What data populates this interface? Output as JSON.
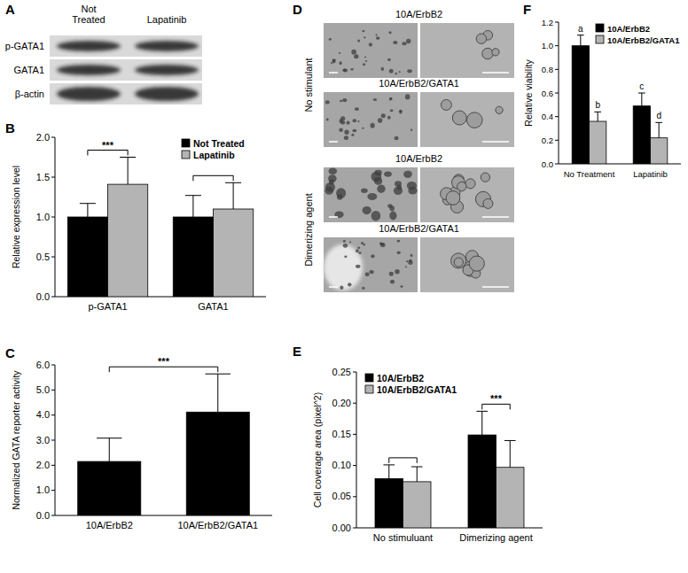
{
  "chart_data": [
    {
      "type": "bar",
      "title": "B",
      "y_label": "Relative expression level",
      "categories": [
        "p-GATA1",
        "GATA1"
      ],
      "series": [
        {
          "name": "Not Treated",
          "color": "#000000",
          "values": [
            1.0,
            1.0
          ],
          "errors": [
            0.17,
            0.27
          ]
        },
        {
          "name": "Lapatinib",
          "color": "#b4b4b4",
          "values": [
            1.41,
            1.1
          ],
          "errors": [
            0.34,
            0.33
          ]
        }
      ],
      "significance": [
        "***",
        null
      ],
      "ylim": [
        0,
        2
      ],
      "yticks": [
        {
          "value": 0,
          "label": "0.0"
        },
        {
          "value": 0.5,
          "label": "0.5"
        },
        {
          "value": 1,
          "label": "1.0"
        },
        {
          "value": 1.5,
          "label": "1.5"
        },
        {
          "value": 2,
          "label": "2.0"
        }
      ],
      "legend": "upper right"
    },
    {
      "type": "bar",
      "title": "C",
      "y_label": "Normalized GATA reporter activity",
      "categories": [
        "10A/ErbB2",
        "10A/ErbB2/GATA1"
      ],
      "values": [
        2.15,
        4.12
      ],
      "errors": [
        0.93,
        1.52
      ],
      "color": "#000000",
      "significance": "***",
      "ylim": [
        0,
        6
      ],
      "yticks": [
        {
          "value": 0,
          "label": "0.0"
        },
        {
          "value": 1,
          "label": "1.0"
        },
        {
          "value": 2,
          "label": "2.0"
        },
        {
          "value": 3,
          "label": "3.0"
        },
        {
          "value": 4,
          "label": "4.0"
        },
        {
          "value": 5,
          "label": "5.0"
        },
        {
          "value": 6,
          "label": "6.0"
        }
      ]
    },
    {
      "type": "bar",
      "title": "E",
      "y_label": "Cell coverage area (pixel^2)",
      "categories": [
        "No stimuluant",
        "Dimerizing agent"
      ],
      "series": [
        {
          "name": "10A/ErbB2",
          "color": "#000000",
          "values": [
            0.079,
            0.149
          ],
          "errors": [
            0.022,
            0.038
          ]
        },
        {
          "name": "10A/ErbB2/GATA1",
          "color": "#b4b4b4",
          "values": [
            0.074,
            0.097
          ],
          "errors": [
            0.024,
            0.043
          ]
        }
      ],
      "significance": [
        null,
        "***"
      ],
      "ylim": [
        0,
        0.25
      ],
      "yticks": [
        {
          "value": 0,
          "label": "0.00"
        },
        {
          "value": 0.05,
          "label": "0.05"
        },
        {
          "value": 0.1,
          "label": "0.10"
        },
        {
          "value": 0.15,
          "label": "0.15"
        },
        {
          "value": 0.2,
          "label": "0.20"
        },
        {
          "value": 0.25,
          "label": "0.25"
        }
      ],
      "legend": "upper left"
    },
    {
      "type": "bar",
      "title": "F",
      "y_label": "Relative viability",
      "categories": [
        "No Treatment",
        "Lapatinib"
      ],
      "series": [
        {
          "name": "10A/ErbB2",
          "color": "#000000",
          "values": [
            1.0,
            0.49
          ],
          "errors": [
            0.09,
            0.11
          ],
          "annotations": [
            "a",
            "c"
          ]
        },
        {
          "name": "10A/ErbB2/GATA1",
          "color": "#b4b4b4",
          "values": [
            0.36,
            0.22
          ],
          "errors": [
            0.08,
            0.13
          ],
          "annotations": [
            "b",
            "d"
          ]
        }
      ],
      "ylim": [
        0,
        1.2
      ],
      "yticks": [
        {
          "value": 0,
          "label": "0.0"
        },
        {
          "value": 0.2,
          "label": "0.2"
        },
        {
          "value": 0.4,
          "label": "0.4"
        },
        {
          "value": 0.6,
          "label": "0.6"
        },
        {
          "value": 0.8,
          "label": "0.8"
        },
        {
          "value": 1,
          "label": "1.0"
        },
        {
          "value": 1.2,
          "label": "1.2"
        }
      ],
      "legend": "upper right"
    }
  ],
  "blot": {
    "title": "A",
    "columns": [
      "Not Treated",
      "Lapatinib"
    ],
    "rows": [
      "p-GATA1",
      "GATA1",
      "β-actin"
    ]
  },
  "micrographs": {
    "title": "D",
    "groups": [
      {
        "label": "No stimulant",
        "panels": [
          "10A/ErbB2",
          "10A/ErbB2/GATA1"
        ]
      },
      {
        "label": "Dimerizing agent",
        "panels": [
          "10A/ErbB2",
          "10A/ErbB2/GATA1"
        ]
      }
    ]
  }
}
